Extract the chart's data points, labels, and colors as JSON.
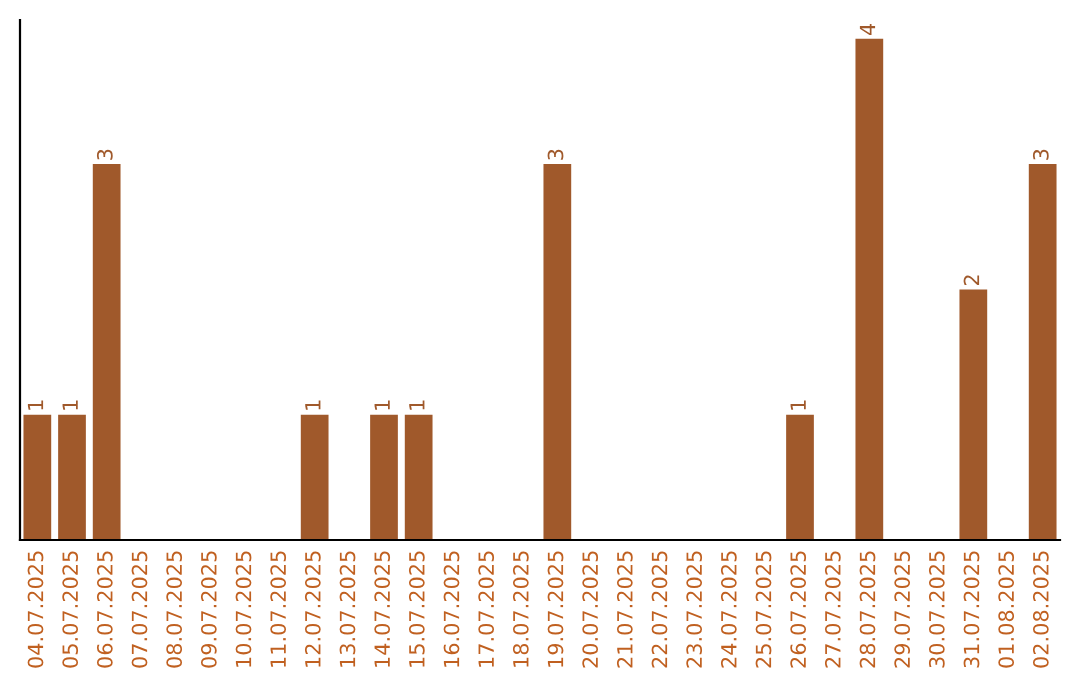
{
  "chart_data": {
    "type": "bar",
    "categories": [
      "04.07.2025",
      "05.07.2025",
      "06.07.2025",
      "07.07.2025",
      "08.07.2025",
      "09.07.2025",
      "10.07.2025",
      "11.07.2025",
      "12.07.2025",
      "13.07.2025",
      "14.07.2025",
      "15.07.2025",
      "16.07.2025",
      "17.07.2025",
      "18.07.2025",
      "19.07.2025",
      "20.07.2025",
      "21.07.2025",
      "22.07.2025",
      "23.07.2025",
      "24.07.2025",
      "25.07.2025",
      "26.07.2025",
      "27.07.2025",
      "28.07.2025",
      "29.07.2025",
      "30.07.2025",
      "31.07.2025",
      "01.08.2025",
      "02.08.2025"
    ],
    "values": [
      1,
      1,
      3,
      0,
      0,
      0,
      0,
      0,
      1,
      0,
      1,
      1,
      0,
      0,
      0,
      3,
      0,
      0,
      0,
      0,
      0,
      0,
      1,
      0,
      4,
      0,
      0,
      2,
      0,
      3
    ],
    "value_labels": [
      "1",
      "1",
      "3",
      null,
      null,
      null,
      null,
      null,
      "1",
      null,
      "1",
      "1",
      null,
      null,
      null,
      "3",
      null,
      null,
      null,
      null,
      null,
      null,
      "1",
      null,
      "4",
      null,
      null,
      "2",
      null,
      "3"
    ],
    "color": "#a0592b",
    "ylim": [
      0,
      4.15
    ],
    "tick_labels": "x",
    "grid": false
  }
}
